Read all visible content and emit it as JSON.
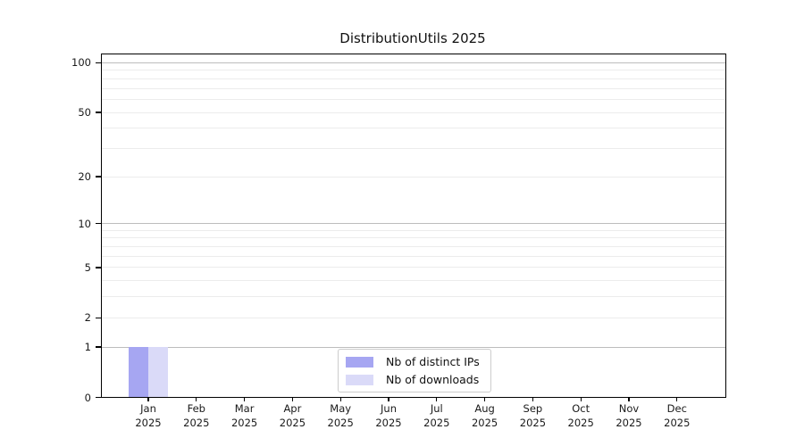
{
  "title": "DistributionUtils 2025",
  "chart_data": {
    "type": "bar",
    "title": "DistributionUtils 2025",
    "categories": [
      "Jan",
      "Feb",
      "Mar",
      "Apr",
      "May",
      "Jun",
      "Jul",
      "Aug",
      "Sep",
      "Oct",
      "Nov",
      "Dec"
    ],
    "x_tick_second_line": "2025",
    "series": [
      {
        "name": "Nb of distinct IPs",
        "color": "#a6a6f2",
        "values": [
          1,
          0,
          0,
          0,
          0,
          0,
          0,
          0,
          0,
          0,
          0,
          0
        ]
      },
      {
        "name": "Nb of downloads",
        "color": "#dadaf8",
        "values": [
          1,
          0,
          0,
          0,
          0,
          0,
          0,
          0,
          0,
          0,
          0,
          0
        ]
      }
    ],
    "xlabel": "",
    "ylabel": "",
    "y_scale": "log1p",
    "ylim": [
      0,
      113
    ],
    "y_ticks": [
      0,
      1,
      2,
      5,
      10,
      20,
      50,
      100
    ],
    "y_strong_gridlines": [
      1,
      10,
      100
    ],
    "y_minor_gridlines": [
      2,
      3,
      4,
      5,
      6,
      7,
      8,
      9,
      20,
      30,
      40,
      50,
      60,
      70,
      80,
      90
    ],
    "grid": true,
    "legend_position": "lower center"
  }
}
